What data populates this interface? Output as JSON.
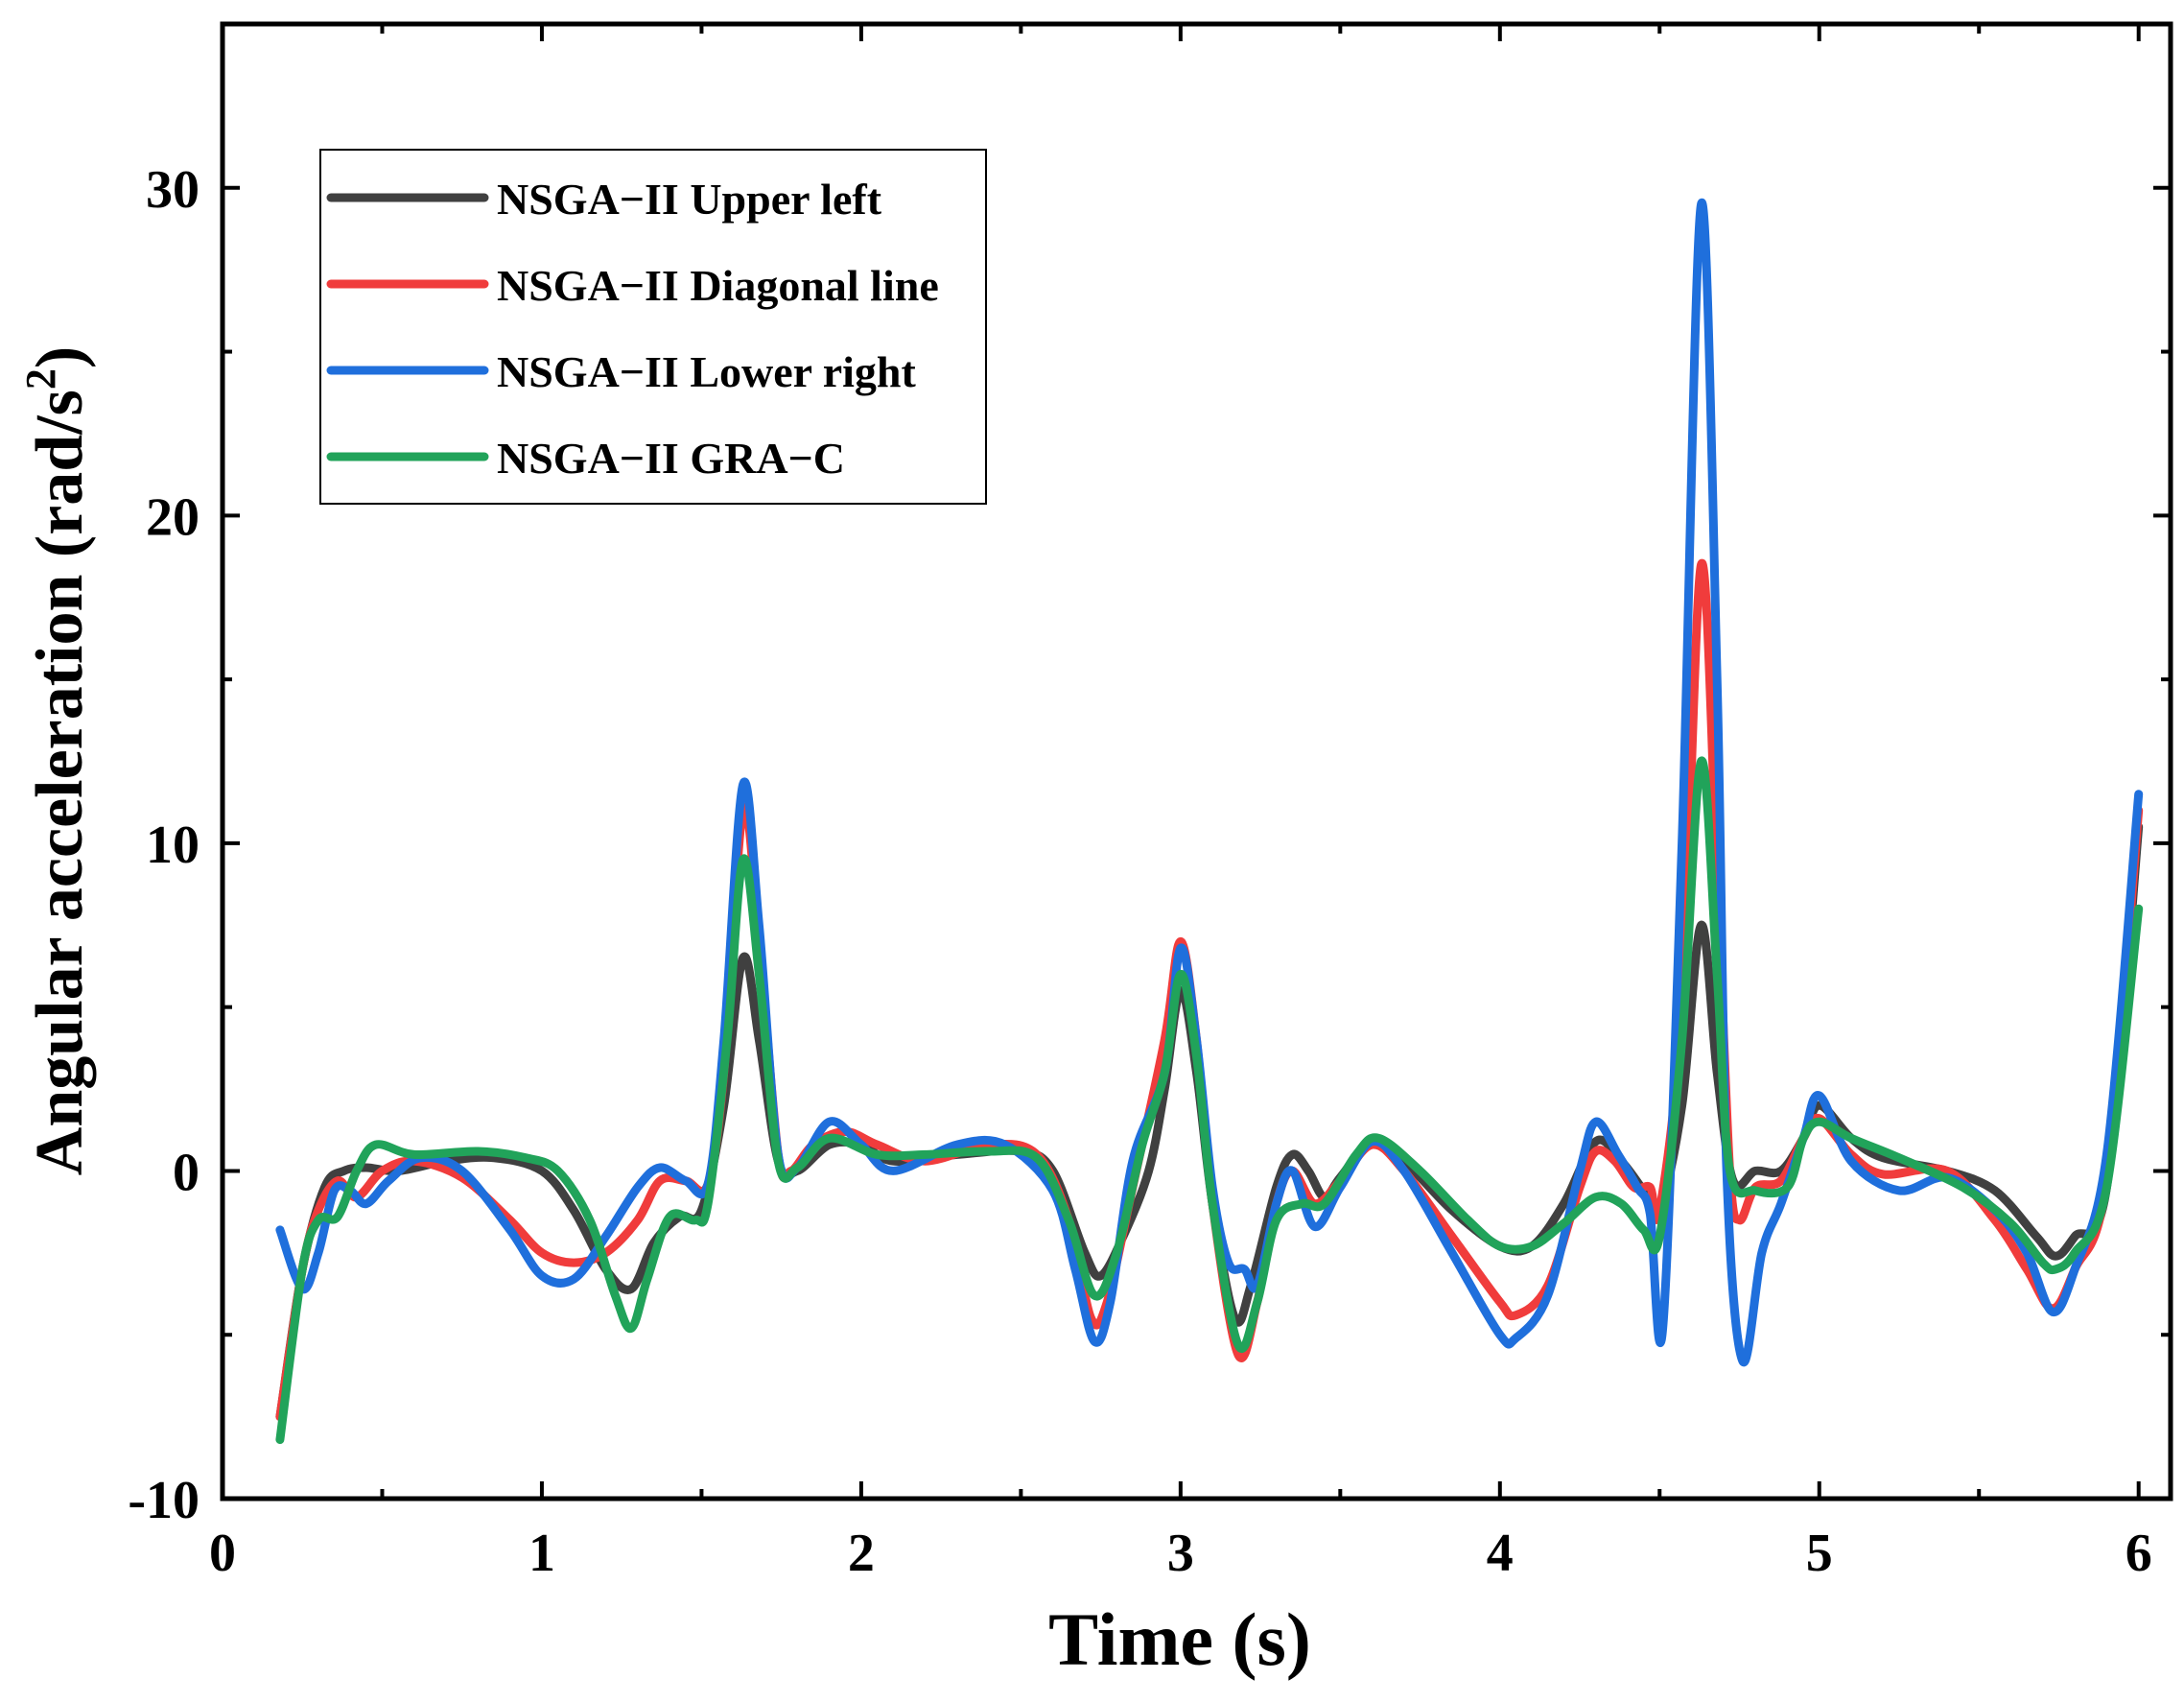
{
  "chart_data": {
    "type": "line",
    "title": "",
    "xlabel": "Time (s)",
    "ylabel_main": "Angular acceleration (rad/s",
    "ylabel_sup": "2",
    "ylabel_close": ")",
    "xlim": [
      0,
      6.1
    ],
    "ylim": [
      -10,
      35
    ],
    "xticks": [
      0,
      1,
      2,
      3,
      4,
      5,
      6
    ],
    "xtick_labels": [
      "0",
      "1",
      "2",
      "3",
      "4",
      "5",
      "6"
    ],
    "yticks": [
      -10,
      0,
      10,
      20,
      30
    ],
    "ytick_labels": [
      "-10",
      "0",
      "10",
      "20",
      "30"
    ],
    "legend_position": "top-left",
    "series": [
      {
        "name": "NSGA−II Upper left",
        "color": "#404040",
        "points": [
          [
            0.18,
            -7.5
          ],
          [
            0.25,
            -3
          ],
          [
            0.32,
            -0.5
          ],
          [
            0.38,
            0
          ],
          [
            0.45,
            0.1
          ],
          [
            0.55,
            0
          ],
          [
            0.7,
            0.3
          ],
          [
            0.85,
            0.4
          ],
          [
            1.0,
            0
          ],
          [
            1.1,
            -1.2
          ],
          [
            1.2,
            -3
          ],
          [
            1.28,
            -3.6
          ],
          [
            1.35,
            -2.2
          ],
          [
            1.43,
            -1.4
          ],
          [
            1.5,
            -1.2
          ],
          [
            1.57,
            2
          ],
          [
            1.63,
            6.5
          ],
          [
            1.68,
            4
          ],
          [
            1.74,
            0.3
          ],
          [
            1.8,
            0
          ],
          [
            1.9,
            0.8
          ],
          [
            2.0,
            0.8
          ],
          [
            2.1,
            0.3
          ],
          [
            2.3,
            0.5
          ],
          [
            2.5,
            0.6
          ],
          [
            2.6,
            0
          ],
          [
            2.7,
            -2.5
          ],
          [
            2.75,
            -3.2
          ],
          [
            2.82,
            -2
          ],
          [
            2.9,
            0
          ],
          [
            2.95,
            2.5
          ],
          [
            3.0,
            5.5
          ],
          [
            3.05,
            3
          ],
          [
            3.1,
            -1
          ],
          [
            3.17,
            -4.5
          ],
          [
            3.22,
            -3.5
          ],
          [
            3.3,
            -0.5
          ],
          [
            3.35,
            0.5
          ],
          [
            3.4,
            0
          ],
          [
            3.45,
            -0.8
          ],
          [
            3.5,
            -0.2
          ],
          [
            3.6,
            0.9
          ],
          [
            3.7,
            0.3
          ],
          [
            3.85,
            -1.2
          ],
          [
            4.0,
            -2.3
          ],
          [
            4.1,
            -2.3
          ],
          [
            4.2,
            -1
          ],
          [
            4.3,
            0.9
          ],
          [
            4.38,
            0.3
          ],
          [
            4.45,
            -0.6
          ],
          [
            4.5,
            -1.2
          ],
          [
            4.57,
            2
          ],
          [
            4.63,
            7.5
          ],
          [
            4.68,
            3
          ],
          [
            4.73,
            -0.3
          ],
          [
            4.8,
            0
          ],
          [
            4.88,
            0
          ],
          [
            4.95,
            1
          ],
          [
            5.0,
            2
          ],
          [
            5.1,
            1
          ],
          [
            5.2,
            0.4
          ],
          [
            5.4,
            0
          ],
          [
            5.55,
            -0.6
          ],
          [
            5.68,
            -2
          ],
          [
            5.74,
            -2.6
          ],
          [
            5.8,
            -2
          ],
          [
            5.9,
            -0.5
          ],
          [
            6.0,
            10.5
          ]
        ]
      },
      {
        "name": "NSGA−II Diagonal line",
        "color": "#f03c3c",
        "points": [
          [
            0.18,
            -7.5
          ],
          [
            0.25,
            -3
          ],
          [
            0.3,
            -1.2
          ],
          [
            0.36,
            -0.3
          ],
          [
            0.42,
            -0.8
          ],
          [
            0.5,
            0
          ],
          [
            0.6,
            0.3
          ],
          [
            0.75,
            -0.2
          ],
          [
            0.9,
            -1.5
          ],
          [
            1.0,
            -2.5
          ],
          [
            1.1,
            -2.8
          ],
          [
            1.2,
            -2.5
          ],
          [
            1.3,
            -1.5
          ],
          [
            1.37,
            -0.3
          ],
          [
            1.45,
            -0.3
          ],
          [
            1.52,
            -0.4
          ],
          [
            1.57,
            3
          ],
          [
            1.63,
            11
          ],
          [
            1.68,
            7
          ],
          [
            1.74,
            0.5
          ],
          [
            1.78,
            0
          ],
          [
            1.85,
            0.8
          ],
          [
            1.95,
            1.2
          ],
          [
            2.05,
            0.8
          ],
          [
            2.2,
            0.3
          ],
          [
            2.4,
            0.8
          ],
          [
            2.55,
            0.5
          ],
          [
            2.65,
            -1.5
          ],
          [
            2.72,
            -4.5
          ],
          [
            2.77,
            -4
          ],
          [
            2.85,
            -0.5
          ],
          [
            2.95,
            4
          ],
          [
            3.0,
            7
          ],
          [
            3.05,
            4
          ],
          [
            3.1,
            -1
          ],
          [
            3.18,
            -5.6
          ],
          [
            3.24,
            -4
          ],
          [
            3.3,
            -1
          ],
          [
            3.35,
            0
          ],
          [
            3.42,
            -1
          ],
          [
            3.5,
            -0.3
          ],
          [
            3.6,
            0.8
          ],
          [
            3.7,
            0
          ],
          [
            3.85,
            -2
          ],
          [
            4.0,
            -4
          ],
          [
            4.05,
            -4.4
          ],
          [
            4.15,
            -3.5
          ],
          [
            4.25,
            -0.5
          ],
          [
            4.3,
            0.6
          ],
          [
            4.36,
            0.3
          ],
          [
            4.42,
            -0.5
          ],
          [
            4.47,
            -0.5
          ],
          [
            4.5,
            -1.2
          ],
          [
            4.57,
            5
          ],
          [
            4.63,
            18.5
          ],
          [
            4.68,
            9
          ],
          [
            4.72,
            0
          ],
          [
            4.75,
            -1.5
          ],
          [
            4.8,
            -0.5
          ],
          [
            4.88,
            -0.3
          ],
          [
            4.95,
            1
          ],
          [
            5.0,
            1.6
          ],
          [
            5.1,
            0.5
          ],
          [
            5.2,
            -0.1
          ],
          [
            5.4,
            0
          ],
          [
            5.55,
            -1.5
          ],
          [
            5.65,
            -3
          ],
          [
            5.73,
            -4.2
          ],
          [
            5.8,
            -3
          ],
          [
            5.9,
            -0.3
          ],
          [
            6.0,
            11
          ]
        ]
      },
      {
        "name": "NSGA−II Lower right",
        "color": "#1f6fdc",
        "points": [
          [
            0.18,
            -1.8
          ],
          [
            0.25,
            -3.6
          ],
          [
            0.3,
            -2.5
          ],
          [
            0.35,
            -0.6
          ],
          [
            0.4,
            -0.6
          ],
          [
            0.45,
            -1
          ],
          [
            0.52,
            -0.3
          ],
          [
            0.62,
            0.4
          ],
          [
            0.75,
            0
          ],
          [
            0.9,
            -1.8
          ],
          [
            1.0,
            -3.2
          ],
          [
            1.1,
            -3.3
          ],
          [
            1.2,
            -2
          ],
          [
            1.3,
            -0.5
          ],
          [
            1.37,
            0.1
          ],
          [
            1.45,
            -0.3
          ],
          [
            1.52,
            -0.4
          ],
          [
            1.57,
            4
          ],
          [
            1.63,
            11.8
          ],
          [
            1.68,
            7.5
          ],
          [
            1.74,
            0.5
          ],
          [
            1.8,
            0.1
          ],
          [
            1.9,
            1.5
          ],
          [
            2.0,
            0.8
          ],
          [
            2.1,
            0
          ],
          [
            2.3,
            0.8
          ],
          [
            2.45,
            0.8
          ],
          [
            2.6,
            -0.6
          ],
          [
            2.67,
            -3
          ],
          [
            2.73,
            -5.2
          ],
          [
            2.78,
            -4
          ],
          [
            2.85,
            0.3
          ],
          [
            2.95,
            3
          ],
          [
            3.0,
            6.8
          ],
          [
            3.05,
            4
          ],
          [
            3.1,
            -0.5
          ],
          [
            3.15,
            -2.8
          ],
          [
            3.2,
            -3
          ],
          [
            3.24,
            -3.5
          ],
          [
            3.3,
            -1
          ],
          [
            3.35,
            0
          ],
          [
            3.42,
            -1.7
          ],
          [
            3.5,
            -0.5
          ],
          [
            3.6,
            0.9
          ],
          [
            3.7,
            0
          ],
          [
            3.85,
            -2.5
          ],
          [
            4.0,
            -5
          ],
          [
            4.05,
            -5.1
          ],
          [
            4.15,
            -3.8
          ],
          [
            4.25,
            0
          ],
          [
            4.3,
            1.5
          ],
          [
            4.37,
            0.5
          ],
          [
            4.43,
            -0.5
          ],
          [
            4.47,
            -1.3
          ],
          [
            4.51,
            -4.8
          ],
          [
            4.57,
            10
          ],
          [
            4.63,
            29.5
          ],
          [
            4.68,
            15
          ],
          [
            4.71,
            0
          ],
          [
            4.76,
            -5.8
          ],
          [
            4.82,
            -2.5
          ],
          [
            4.88,
            -1
          ],
          [
            4.95,
            1
          ],
          [
            5.0,
            2.3
          ],
          [
            5.1,
            0.3
          ],
          [
            5.25,
            -0.6
          ],
          [
            5.4,
            -0.2
          ],
          [
            5.55,
            -1.2
          ],
          [
            5.65,
            -2.5
          ],
          [
            5.73,
            -4.3
          ],
          [
            5.8,
            -3
          ],
          [
            5.9,
            0.5
          ],
          [
            6.0,
            11.5
          ]
        ]
      },
      {
        "name": "NSGA−II GRA−C",
        "color": "#21a35a",
        "points": [
          [
            0.18,
            -8.2
          ],
          [
            0.25,
            -3
          ],
          [
            0.3,
            -1.5
          ],
          [
            0.36,
            -1.4
          ],
          [
            0.42,
            0
          ],
          [
            0.48,
            0.8
          ],
          [
            0.6,
            0.5
          ],
          [
            0.8,
            0.6
          ],
          [
            0.95,
            0.4
          ],
          [
            1.05,
            0
          ],
          [
            1.15,
            -1.5
          ],
          [
            1.23,
            -3.8
          ],
          [
            1.28,
            -4.8
          ],
          [
            1.33,
            -3.3
          ],
          [
            1.4,
            -1.4
          ],
          [
            1.48,
            -1.5
          ],
          [
            1.52,
            -1
          ],
          [
            1.58,
            4
          ],
          [
            1.63,
            9.5
          ],
          [
            1.68,
            6
          ],
          [
            1.74,
            0.3
          ],
          [
            1.8,
            0.1
          ],
          [
            1.9,
            1
          ],
          [
            2.05,
            0.5
          ],
          [
            2.2,
            0.5
          ],
          [
            2.4,
            0.6
          ],
          [
            2.55,
            0.4
          ],
          [
            2.65,
            -1.5
          ],
          [
            2.73,
            -3.8
          ],
          [
            2.8,
            -2.5
          ],
          [
            2.88,
            0.8
          ],
          [
            2.95,
            3
          ],
          [
            3.0,
            6
          ],
          [
            3.05,
            3.5
          ],
          [
            3.1,
            -1
          ],
          [
            3.18,
            -5.3
          ],
          [
            3.24,
            -4
          ],
          [
            3.3,
            -1.5
          ],
          [
            3.38,
            -1
          ],
          [
            3.45,
            -1
          ],
          [
            3.55,
            0.5
          ],
          [
            3.62,
            1
          ],
          [
            3.75,
            0
          ],
          [
            3.9,
            -1.5
          ],
          [
            4.0,
            -2.3
          ],
          [
            4.1,
            -2.3
          ],
          [
            4.2,
            -1.6
          ],
          [
            4.3,
            -0.8
          ],
          [
            4.38,
            -1
          ],
          [
            4.45,
            -1.8
          ],
          [
            4.5,
            -2
          ],
          [
            4.57,
            4
          ],
          [
            4.63,
            12.5
          ],
          [
            4.68,
            6
          ],
          [
            4.72,
            0
          ],
          [
            4.8,
            -0.6
          ],
          [
            4.9,
            -0.5
          ],
          [
            4.95,
            1
          ],
          [
            5.0,
            1.5
          ],
          [
            5.1,
            1
          ],
          [
            5.25,
            0.4
          ],
          [
            5.45,
            -0.5
          ],
          [
            5.6,
            -1.6
          ],
          [
            5.7,
            -2.8
          ],
          [
            5.74,
            -3
          ],
          [
            5.8,
            -2.5
          ],
          [
            5.9,
            -0.5
          ],
          [
            6.0,
            8
          ]
        ]
      }
    ]
  }
}
